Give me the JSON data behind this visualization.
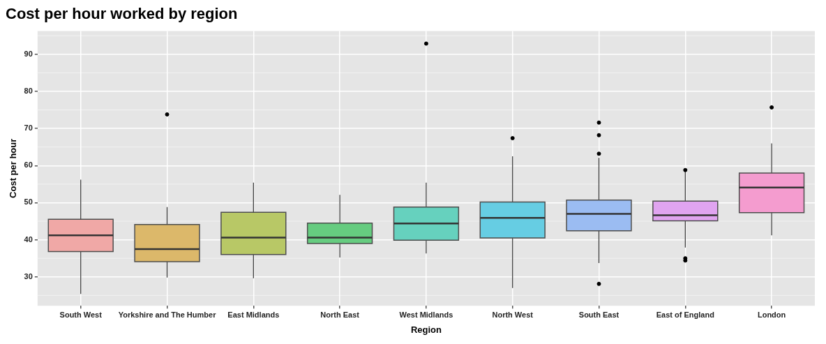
{
  "chart_data": {
    "type": "box",
    "title": "Cost per hour worked by region",
    "xlabel": "Region",
    "ylabel": "Cost per hour",
    "categories": [
      "South West",
      "Yorkshire and The Humber",
      "East Midlands",
      "North East",
      "West Midlands",
      "North West",
      "South East",
      "East of England",
      "London"
    ],
    "colors": [
      "#f0a8a6",
      "#dcb86a",
      "#b8c866",
      "#66cc80",
      "#66d1be",
      "#66cde3",
      "#9bbcf2",
      "#e0a4f0",
      "#f49ccf"
    ],
    "boxes": [
      {
        "low": 25.4,
        "q1": 36.8,
        "median": 41.2,
        "q3": 45.5,
        "high": 56.2
      },
      {
        "low": 29.8,
        "q1": 34.1,
        "median": 37.5,
        "q3": 44.1,
        "high": 48.8,
        "outliers": [
          73.8
        ]
      },
      {
        "low": 29.6,
        "q1": 36.0,
        "median": 40.6,
        "q3": 47.4,
        "high": 55.4
      },
      {
        "low": 35.2,
        "q1": 39.0,
        "median": 40.6,
        "q3": 44.5,
        "high": 52.1
      },
      {
        "low": 36.3,
        "q1": 39.9,
        "median": 44.4,
        "q3": 48.8,
        "high": 55.4,
        "outliers": [
          92.9
        ]
      },
      {
        "low": 27.0,
        "q1": 40.5,
        "median": 45.9,
        "q3": 50.2,
        "high": 62.5,
        "outliers": [
          67.4
        ]
      },
      {
        "low": 33.7,
        "q1": 42.4,
        "median": 47.0,
        "q3": 50.7,
        "high": 62.1,
        "outliers": [
          71.6,
          68.2,
          63.2,
          28.1
        ]
      },
      {
        "low": 37.9,
        "q1": 45.1,
        "median": 46.6,
        "q3": 50.4,
        "high": 58.6,
        "outliers": [
          58.8,
          35.0,
          34.4
        ]
      },
      {
        "low": 41.2,
        "q1": 47.3,
        "median": 54.1,
        "q3": 58.0,
        "high": 66.0,
        "outliers": [
          75.7
        ]
      }
    ],
    "ylim": [
      22.2,
      96.3
    ],
    "yticks": [
      30,
      40,
      50,
      60,
      70,
      80,
      90
    ],
    "grid": true
  }
}
